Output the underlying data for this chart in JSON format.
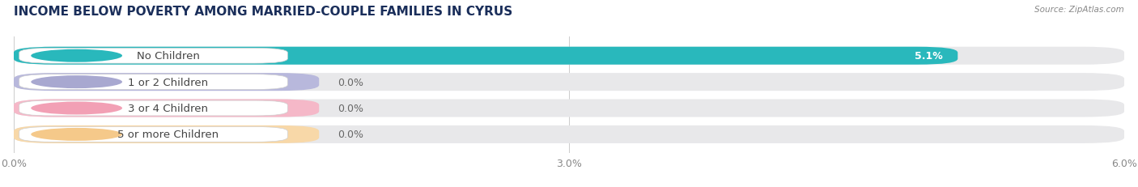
{
  "title": "INCOME BELOW POVERTY AMONG MARRIED-COUPLE FAMILIES IN CYRUS",
  "source": "Source: ZipAtlas.com",
  "categories": [
    "No Children",
    "1 or 2 Children",
    "3 or 4 Children",
    "5 or more Children"
  ],
  "values": [
    5.1,
    0.0,
    0.0,
    0.0
  ],
  "bar_colors": [
    "#29b8bc",
    "#a8a8d0",
    "#f2a0b5",
    "#f5c98a"
  ],
  "bar_bg_color": "#e8e8ea",
  "zero_bar_colors": [
    "#29b8bc",
    "#b8b8dc",
    "#f5b8c8",
    "#f8d8a8"
  ],
  "xlim": [
    0,
    6.0
  ],
  "xticks": [
    0.0,
    3.0,
    6.0
  ],
  "xtick_labels": [
    "0.0%",
    "3.0%",
    "6.0%"
  ],
  "title_fontsize": 11,
  "label_fontsize": 9.5,
  "value_fontsize": 9,
  "background_color": "#ffffff",
  "bar_height": 0.68,
  "label_bg_color": "#ffffff",
  "zero_bar_width": 1.65
}
